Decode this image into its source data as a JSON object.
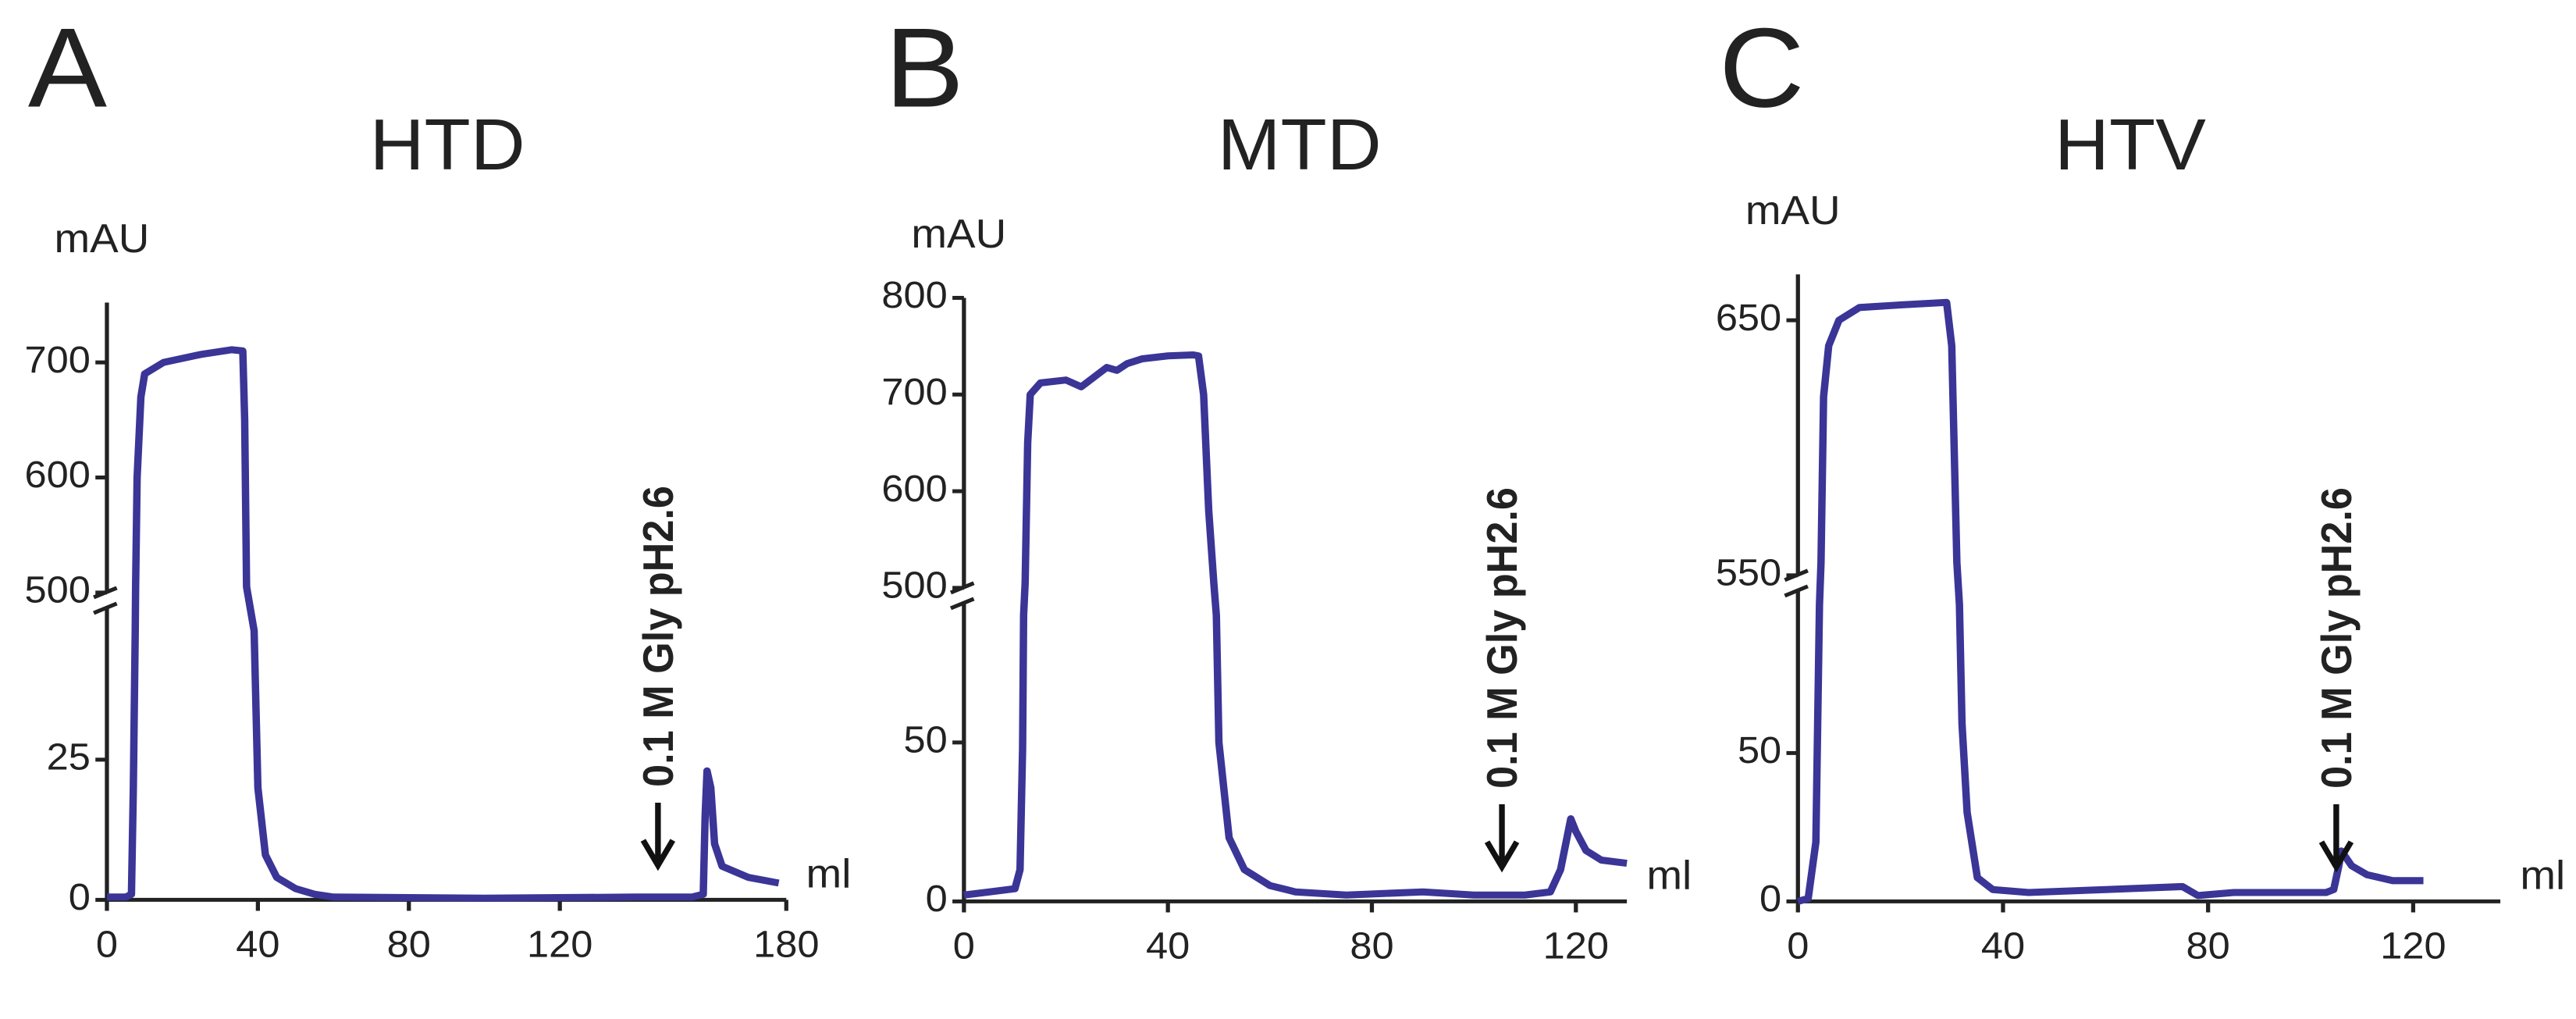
{
  "chart_data": [
    {
      "type": "line",
      "panel": "A",
      "title": "HTD",
      "ylabel": "mAU",
      "xlabel": "ml",
      "color": "#3a3596",
      "annotation": "0.1 M Gly pH2.6",
      "annotation_x": 146,
      "xlim": [
        0,
        180
      ],
      "xticks": [
        0,
        40,
        80,
        120,
        180
      ],
      "ylim": [
        0,
        752
      ],
      "y_break": [
        52,
        500
      ],
      "yticks": [
        0,
        25,
        500,
        600,
        700
      ],
      "x": [
        0,
        5,
        6.5,
        7,
        7.5,
        7.6,
        8,
        9,
        10,
        15,
        25,
        33,
        36,
        36.5,
        37,
        39,
        40,
        42,
        45,
        50,
        55,
        60,
        100,
        140,
        155,
        158,
        158.5,
        159,
        160,
        161,
        163,
        170,
        178
      ],
      "values": [
        0.5,
        0.5,
        1,
        20,
        48,
        505,
        600,
        670,
        690,
        700,
        707,
        711,
        710,
        650,
        505,
        48,
        20,
        8,
        4,
        2,
        1,
        0.5,
        0.3,
        0.5,
        0.5,
        1,
        15,
        23,
        20,
        10,
        6,
        4,
        3
      ]
    },
    {
      "type": "line",
      "panel": "B",
      "title": "MTD",
      "ylabel": "mAU",
      "xlabel": "ml",
      "color": "#3a3596",
      "annotation": "0.1 M Gly pH2.6",
      "annotation_x": 105.5,
      "xlim": [
        0,
        130
      ],
      "xticks": [
        0,
        40,
        80,
        120
      ],
      "ylim": [
        0,
        800
      ],
      "y_break": [
        93.7,
        500
      ],
      "yticks": [
        0,
        50,
        500,
        600,
        700,
        800
      ],
      "x": [
        0,
        5,
        10,
        11,
        11.5,
        11.7,
        12,
        12.5,
        13,
        15,
        20,
        23,
        26,
        28,
        30,
        32,
        35,
        40,
        45,
        46,
        47,
        48,
        49,
        49.5,
        50,
        52,
        55,
        60,
        65,
        75,
        90,
        100,
        110,
        115,
        117,
        119,
        120,
        122,
        125,
        130
      ],
      "values": [
        2,
        3,
        4,
        10,
        48,
        90,
        505,
        650,
        700,
        712,
        715,
        708,
        720,
        728,
        725,
        732,
        737,
        740,
        741,
        740,
        700,
        580,
        505,
        90,
        50,
        20,
        10,
        5,
        3,
        2,
        3,
        2,
        2,
        3,
        10,
        26,
        22,
        16,
        13,
        12
      ]
    },
    {
      "type": "line",
      "panel": "C",
      "title": "HTV",
      "ylabel": "mAU",
      "xlabel": "ml",
      "color": "#3a3596",
      "annotation": "0.1 M Gly pH2.6",
      "annotation_x": 105,
      "xlim": [
        0,
        137
      ],
      "xticks": [
        0,
        40,
        80,
        120
      ],
      "ylim": [
        0,
        668
      ],
      "y_break": [
        104.6,
        550
      ],
      "yticks": [
        0,
        50,
        550,
        650
      ],
      "x": [
        0,
        2,
        3.5,
        4.2,
        4.5,
        5,
        6,
        8,
        12,
        20,
        29,
        30,
        31,
        31.5,
        32,
        33,
        35,
        38,
        45,
        60,
        75,
        78,
        85,
        100,
        103,
        104.5,
        105.5,
        106,
        108,
        111,
        116,
        122
      ],
      "values": [
        0,
        1,
        20,
        100,
        555,
        620,
        640,
        650,
        655,
        656,
        657,
        640,
        555,
        100,
        60,
        30,
        8,
        4,
        3,
        4,
        5,
        2,
        3,
        3,
        3,
        4,
        12,
        17,
        12,
        9,
        7,
        7
      ]
    }
  ]
}
